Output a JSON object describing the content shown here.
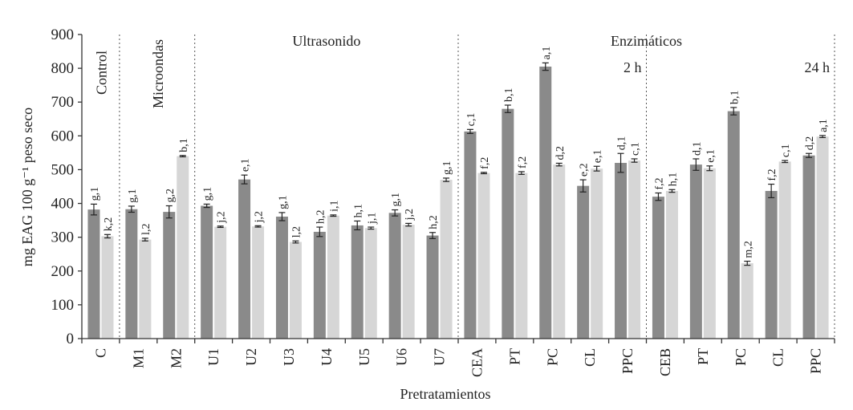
{
  "chart_data": {
    "type": "bar",
    "xlabel": "Pretratamientos",
    "ylabel": "mg EAG 100 g⁻¹ peso seco",
    "ylim": [
      0,
      900
    ],
    "yticks": [
      0,
      100,
      200,
      300,
      400,
      500,
      600,
      700,
      800,
      900
    ],
    "grid": false,
    "colors": {
      "series1": "#8a8a8a",
      "series2": "#d6d6d6"
    },
    "groups": [
      {
        "label": "Control",
        "orientation": "vertical"
      },
      {
        "label": "Microondas",
        "orientation": "vertical"
      },
      {
        "label": "Ultrasonido",
        "orientation": "horizontal"
      },
      {
        "label": "Enzimáticos",
        "orientation": "horizontal"
      }
    ],
    "subgroups": [
      {
        "label": "2 h"
      },
      {
        "label": "24 h"
      }
    ],
    "categories": [
      "C",
      "M1",
      "M2",
      "U1",
      "U2",
      "U3",
      "U4",
      "U5",
      "U6",
      "U7",
      "CEA",
      "PT",
      "PC",
      "CL",
      "PPC",
      "CEB",
      "PT",
      "PC",
      "CL",
      "PPC"
    ],
    "series": [
      {
        "values": [
          382,
          383,
          375,
          393,
          471,
          361,
          316,
          335,
          372,
          305,
          613,
          680,
          805,
          452,
          520,
          420,
          515,
          673,
          437,
          542
        ],
        "errors": [
          16,
          9,
          18,
          5,
          13,
          12,
          14,
          13,
          9,
          9,
          6,
          11,
          11,
          18,
          28,
          11,
          17,
          11,
          20,
          6
        ],
        "labels": [
          "g,1",
          "g,1",
          "g,2",
          "g,1",
          "e,1",
          "g,1",
          "h,2",
          "h,1",
          "g,1",
          "h,2",
          "c,1",
          "b,1",
          "a,1",
          "e,2",
          "d,1",
          "f,2",
          "d,1",
          "b,1",
          "f,2",
          "d,2"
        ]
      },
      {
        "values": [
          303,
          293,
          540,
          331,
          332,
          286,
          364,
          327,
          337,
          470,
          490,
          490,
          515,
          503,
          527,
          437,
          504,
          223,
          524,
          598
        ],
        "errors": [
          5,
          4,
          2,
          2,
          2,
          3,
          2,
          3,
          4,
          5,
          2,
          4,
          4,
          7,
          5,
          4,
          7,
          6,
          3,
          3
        ],
        "labels": [
          "k,2",
          "l,2",
          "b,1",
          "j,2",
          "j,2",
          "l,2",
          "i,1",
          "j,1",
          "j,2",
          "g,1",
          "f,2",
          "f,2",
          "d,2",
          "e,1",
          "c,1",
          "h,1",
          "e,1",
          "m,2",
          "c,1",
          "a,1"
        ]
      }
    ]
  }
}
